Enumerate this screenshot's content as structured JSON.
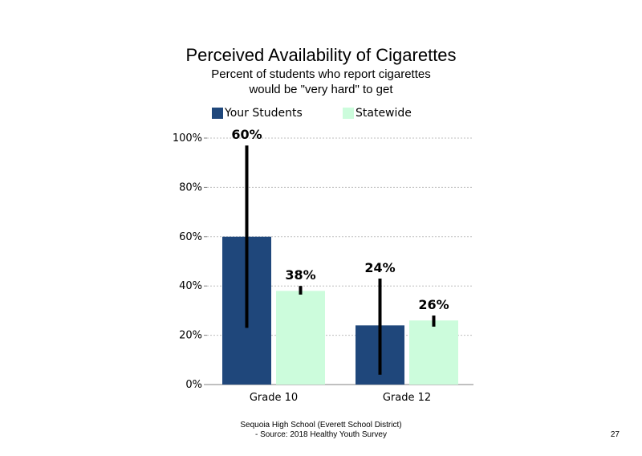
{
  "chart_data": {
    "type": "bar",
    "title": "Perceived Availability of Cigarettes",
    "subtitle_lines": [
      "Percent of students who report cigarettes",
      "would be \"very hard\" to get"
    ],
    "categories": [
      "Grade 10",
      "Grade 12"
    ],
    "series": [
      {
        "name": "Your Students",
        "color": "#1f477b",
        "values": [
          60,
          24
        ],
        "labels": [
          "60%",
          "24%"
        ],
        "error_low": [
          23,
          4
        ],
        "error_high": [
          97,
          43
        ]
      },
      {
        "name": "Statewide",
        "color": "#ccfcdc",
        "values": [
          38,
          26
        ],
        "labels": [
          "38%",
          "26%"
        ],
        "error_low": [
          36.5,
          23.5
        ],
        "error_high": [
          40,
          28
        ]
      }
    ],
    "ylim": [
      0,
      100
    ],
    "yticks": [
      0,
      20,
      40,
      60,
      80,
      100
    ],
    "ytick_labels": [
      "0%",
      "20%",
      "40%",
      "60%",
      "80%",
      "100%"
    ],
    "grid": true,
    "legend_position": "top"
  },
  "footer": {
    "line1": "Sequoia High School (Everett School District)",
    "line2": "- Source: 2018 Healthy Youth Survey"
  },
  "page_number": "27"
}
